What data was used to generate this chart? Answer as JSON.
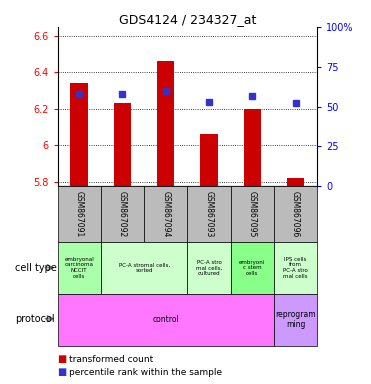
{
  "title": "GDS4124 / 234327_at",
  "samples": [
    "GSM867091",
    "GSM867092",
    "GSM867094",
    "GSM867093",
    "GSM867095",
    "GSM867096"
  ],
  "bar_values": [
    6.34,
    6.23,
    6.46,
    6.06,
    6.2,
    5.82
  ],
  "bar_base": 5.775,
  "blue_dot_values": [
    6.28,
    6.28,
    6.3,
    6.24,
    6.27,
    6.23
  ],
  "ylim": [
    5.775,
    6.65
  ],
  "yticks_left": [
    5.8,
    6.0,
    6.2,
    6.4,
    6.6
  ],
  "ytick_labels_left": [
    "5.8",
    "6",
    "6.2",
    "6.4",
    "6.6"
  ],
  "yticks_right_pct": [
    0,
    25,
    50,
    75,
    100
  ],
  "ytick_labels_right": [
    "0",
    "25",
    "50",
    "75",
    "100%"
  ],
  "bar_color": "#CC0000",
  "dot_color": "#3333CC",
  "cell_types": [
    {
      "label": "embryonal\ncarcinoma\nNCCIT\ncells",
      "col_span": [
        0,
        0
      ],
      "bg": "#AAFFAA"
    },
    {
      "label": "PC-A stromal cells,\nsorted",
      "col_span": [
        1,
        2
      ],
      "bg": "#CCFFCC"
    },
    {
      "label": "PC-A stro\nmal cells,\ncultured",
      "col_span": [
        3,
        3
      ],
      "bg": "#CCFFCC"
    },
    {
      "label": "embryoni\nc stem\ncells",
      "col_span": [
        4,
        4
      ],
      "bg": "#88FF88"
    },
    {
      "label": "IPS cells\nfrom\nPC-A stro\nmal cells",
      "col_span": [
        5,
        5
      ],
      "bg": "#CCFFCC"
    }
  ],
  "protocols": [
    {
      "label": "control",
      "col_span": [
        0,
        4
      ],
      "bg": "#FF77FF"
    },
    {
      "label": "reprogram\nming",
      "col_span": [
        5,
        5
      ],
      "bg": "#CC99FF"
    }
  ],
  "legend_red_label": "transformed count",
  "legend_blue_label": "percentile rank within the sample",
  "cell_type_label": "cell type",
  "protocol_label": "protocol",
  "sample_bg": "#BBBBBB"
}
